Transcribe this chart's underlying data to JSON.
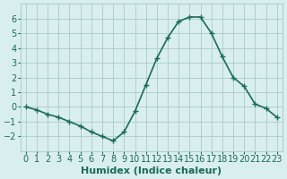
{
  "x": [
    0,
    1,
    2,
    3,
    4,
    5,
    6,
    7,
    8,
    9,
    10,
    11,
    12,
    13,
    14,
    15,
    16,
    17,
    18,
    19,
    20,
    21,
    22,
    23
  ],
  "y": [
    0.0,
    -0.2,
    -0.5,
    -0.7,
    -1.0,
    -1.3,
    -1.7,
    -2.0,
    -2.3,
    -1.7,
    -0.3,
    1.5,
    3.3,
    4.7,
    5.8,
    6.1,
    6.1,
    5.0,
    3.4,
    2.0,
    1.4,
    0.2,
    -0.1,
    -0.7
  ],
  "line_color": "#1a6b5a",
  "marker": "+",
  "marker_size": 4,
  "bg_color": "#d9eeee",
  "grid_color": "#b0d0d0",
  "xlabel": "Humidex (Indice chaleur)",
  "xlabel_fontsize": 8,
  "tick_fontsize": 7,
  "ylim": [
    -3,
    7
  ],
  "xlim": [
    -0.5,
    23.5
  ],
  "yticks": [
    -2,
    -1,
    0,
    1,
    2,
    3,
    4,
    5,
    6
  ],
  "xticks": [
    0,
    1,
    2,
    3,
    4,
    5,
    6,
    7,
    8,
    9,
    10,
    11,
    12,
    13,
    14,
    15,
    16,
    17,
    18,
    19,
    20,
    21,
    22,
    23
  ],
  "line_width": 1.2
}
